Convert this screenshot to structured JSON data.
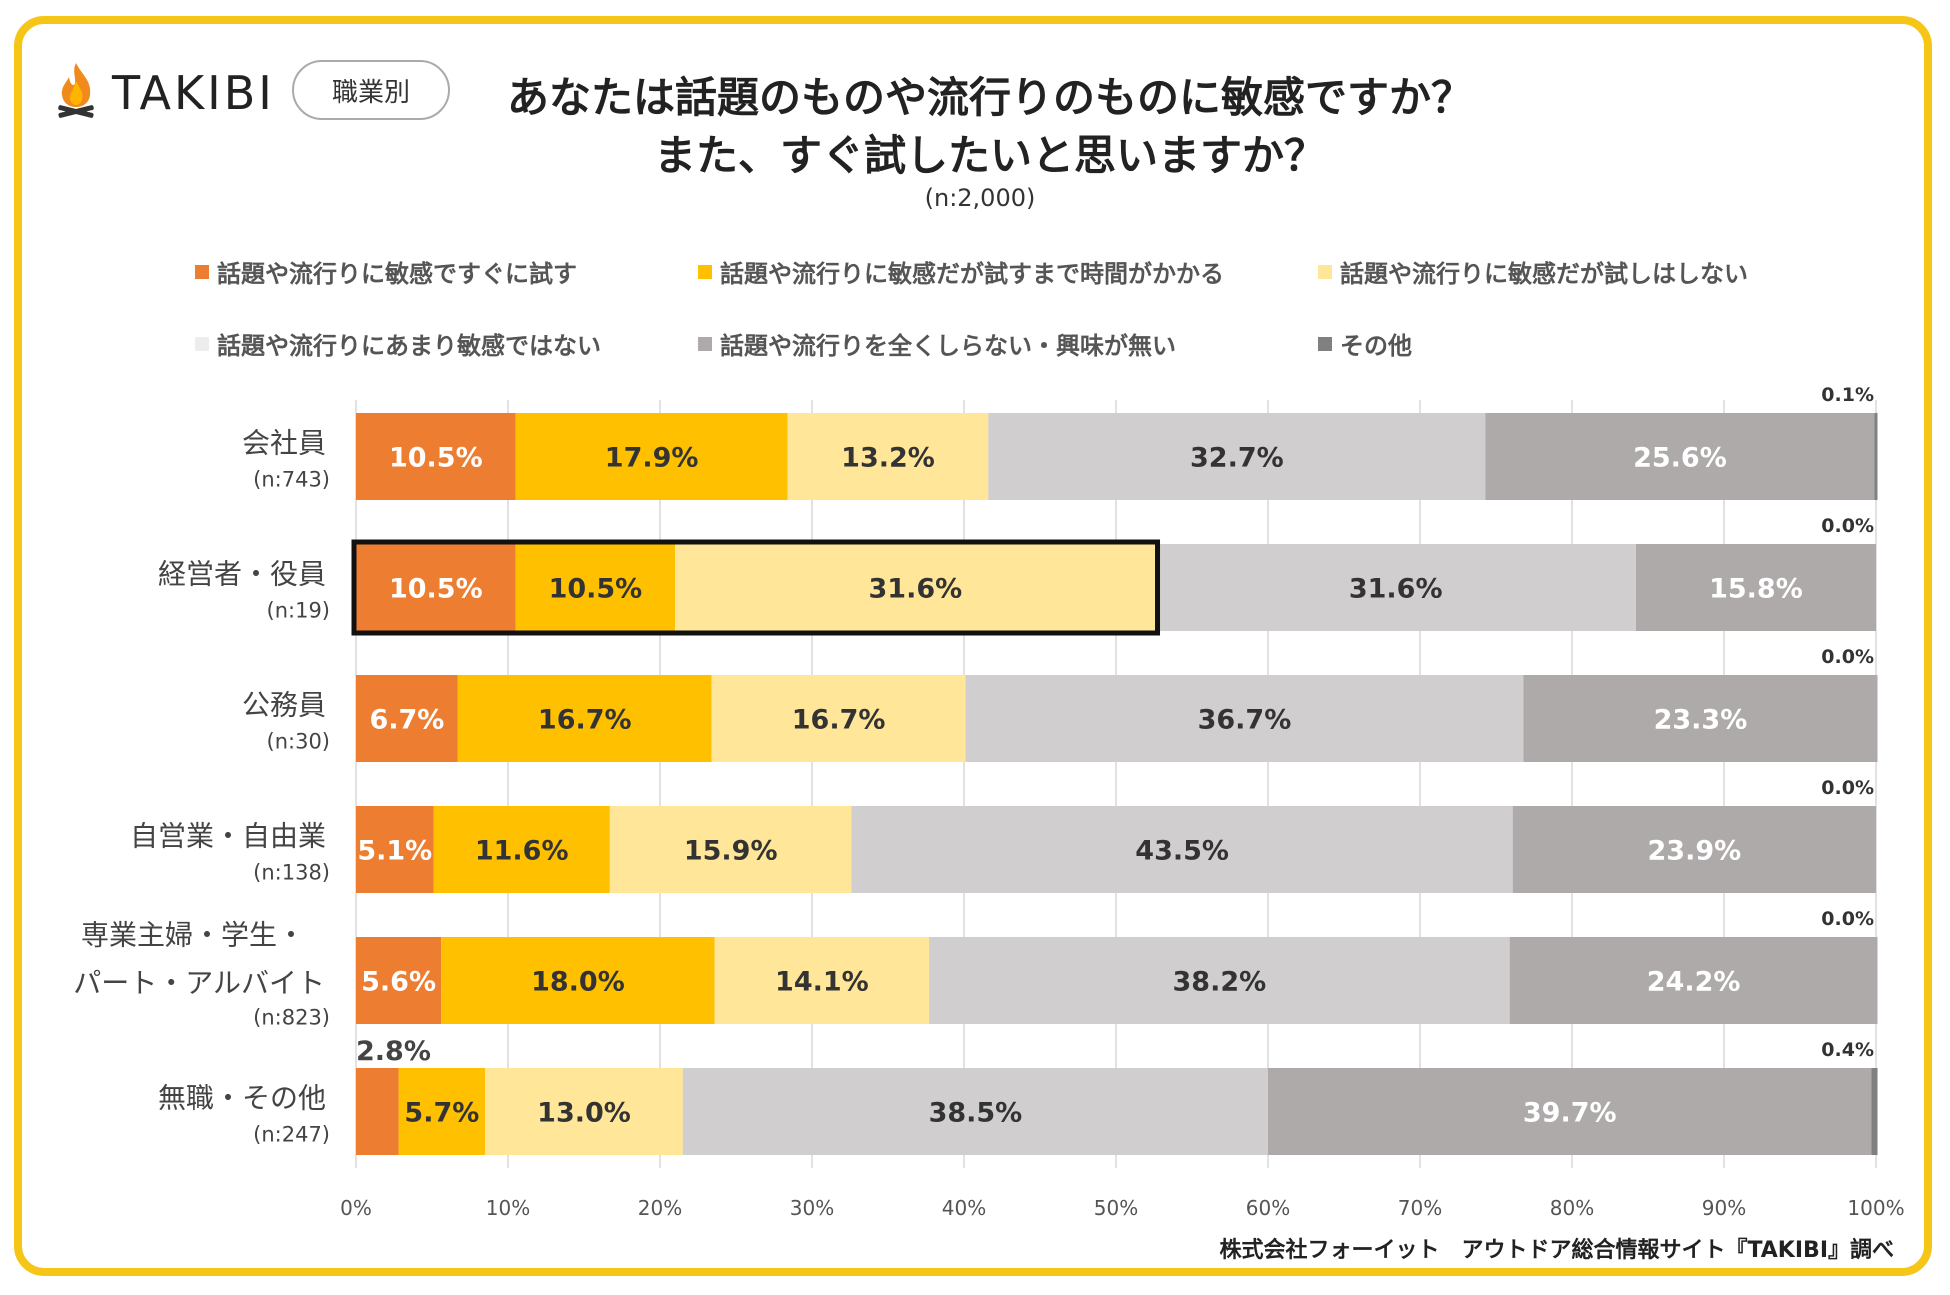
{
  "header": {
    "logo_text": "TAKIBI",
    "badge": "職業別",
    "title_line1": "あなたは話題のものや流行りのものに敏感ですか？",
    "title_line2": "また、すぐ試したいと思いますか？",
    "subtitle": "(n:2,000)"
  },
  "legend": {
    "items": [
      {
        "label": "話題や流行りに敏感ですぐに試す",
        "color": "#ed7d31"
      },
      {
        "label": "話題や流行りに敏感だが試すまで時間がかかる",
        "color": "#ffc000"
      },
      {
        "label": "話題や流行りに敏感だが試しはしない",
        "color": "#ffe699"
      },
      {
        "label": "話題や流行りにあまり敏感ではない",
        "color": "#d0cece"
      },
      {
        "label": "話題や流行りを全くしらない・興味が無い",
        "color": "#aeaaaa"
      },
      {
        "label": "その他",
        "color": "#808080"
      }
    ]
  },
  "footer": {
    "source": "株式会社フォーイット　アウトドア総合情報サイト『TAKIBI』調べ"
  },
  "chart_data": {
    "type": "bar",
    "orientation": "horizontal-stacked-100",
    "xlim": [
      0,
      100
    ],
    "x_ticks": [
      "0%",
      "10%",
      "20%",
      "30%",
      "40%",
      "50%",
      "60%",
      "70%",
      "80%",
      "90%",
      "100%"
    ],
    "categories": [
      {
        "name": "会社員",
        "name2": "",
        "n": "(n:743)"
      },
      {
        "name": "経営者・役員",
        "name2": "",
        "n": "(n:19)"
      },
      {
        "name": "公務員",
        "name2": "",
        "n": "(n:30)"
      },
      {
        "name": "自営業・自由業",
        "name2": "",
        "n": "(n:138)"
      },
      {
        "name": "専業主婦・学生・",
        "name2": "パート・アルバイト",
        "n": "(n:823)"
      },
      {
        "name": "無職・その他",
        "name2": "",
        "n": "(n:247)"
      }
    ],
    "series": [
      {
        "name": "話題や流行りに敏感ですぐに試す",
        "color": "#ed7d31",
        "text_color": "#ffffff",
        "values": [
          10.5,
          10.5,
          6.7,
          5.1,
          5.6,
          2.8
        ],
        "labels": [
          "10.5%",
          "10.5%",
          "6.7%",
          "5.1%",
          "5.6%",
          "2.8%"
        ]
      },
      {
        "name": "話題や流行りに敏感だが試すまで時間がかかる",
        "color": "#ffc000",
        "text_color": "#333333",
        "values": [
          17.9,
          10.5,
          16.7,
          11.6,
          18.0,
          5.7
        ],
        "labels": [
          "17.9%",
          "10.5%",
          "16.7%",
          "11.6%",
          "18.0%",
          "5.7%"
        ]
      },
      {
        "name": "話題や流行りに敏感だが試しはしない",
        "color": "#ffe699",
        "text_color": "#333333",
        "values": [
          13.2,
          31.6,
          16.7,
          15.9,
          14.1,
          13.0
        ],
        "labels": [
          "13.2%",
          "31.6%",
          "16.7%",
          "15.9%",
          "14.1%",
          "13.0%"
        ]
      },
      {
        "name": "話題や流行りにあまり敏感ではない",
        "color": "#d0cece",
        "text_color": "#333333",
        "values": [
          32.7,
          31.6,
          36.7,
          43.5,
          38.2,
          38.5
        ],
        "labels": [
          "32.7%",
          "31.6%",
          "36.7%",
          "43.5%",
          "38.2%",
          "38.5%"
        ]
      },
      {
        "name": "話題や流行りを全くしらない・興味が無い",
        "color": "#aeaaaa",
        "text_color": "#ffffff",
        "values": [
          25.6,
          15.8,
          23.3,
          23.9,
          24.2,
          39.7
        ],
        "labels": [
          "25.6%",
          "15.8%",
          "23.3%",
          "23.9%",
          "24.2%",
          "39.7%"
        ]
      },
      {
        "name": "その他",
        "color": "#808080",
        "text_color": "#333333",
        "values": [
          0.1,
          0.0,
          0.0,
          0.0,
          0.0,
          0.4
        ],
        "labels": [
          "0.1%",
          "0.0%",
          "0.0%",
          "0.0%",
          "0.0%",
          "0.4%"
        ]
      }
    ],
    "highlight": {
      "category_index": 1,
      "series_count": 3
    }
  }
}
